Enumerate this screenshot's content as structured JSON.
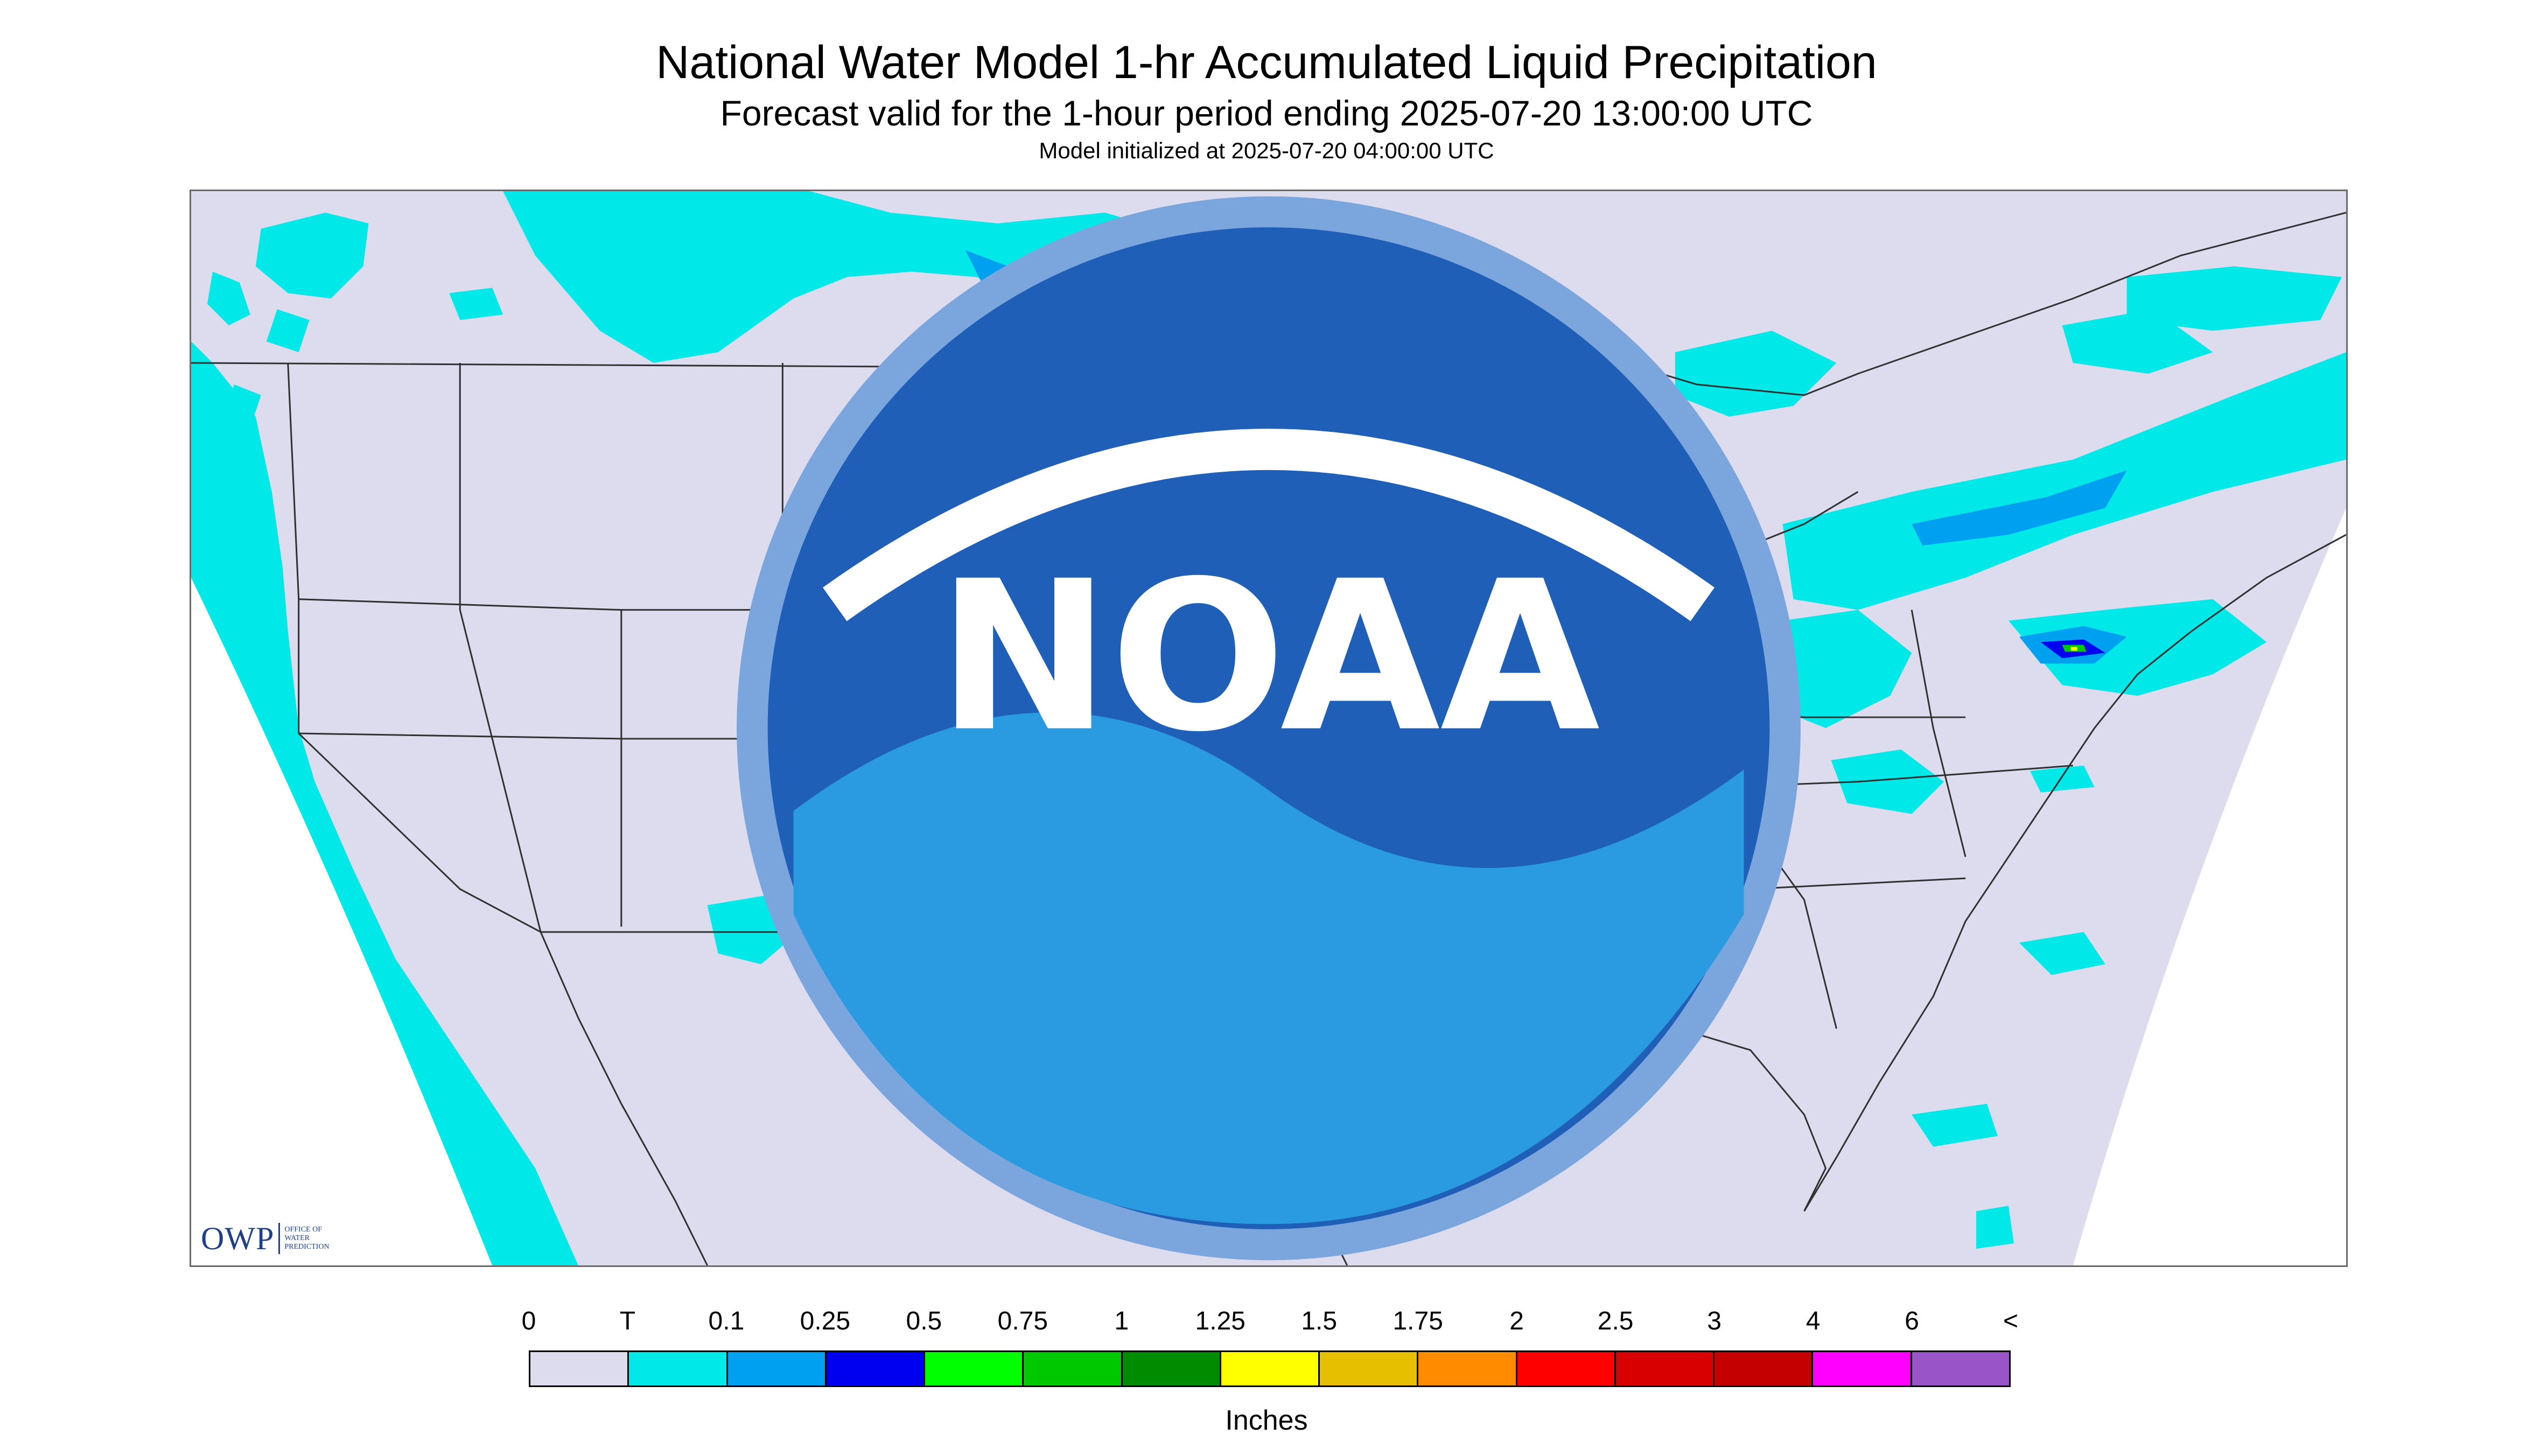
{
  "title": "National Water Model 1-hr Accumulated Liquid Precipitation",
  "subtitle": "Forecast valid for the 1-hour period ending 2025-07-20 13:00:00 UTC",
  "initialized": "Model initialized at 2025-07-20 04:00:00 UTC",
  "logos": {
    "owp_abbr": "OWP",
    "owp_full": "Office of Water Prediction",
    "noaa_label": "NOAA"
  },
  "legend": {
    "tick_labels": [
      "0",
      "T",
      "0.1",
      "0.25",
      "0.5",
      "0.75",
      "1",
      "1.25",
      "1.5",
      "1.75",
      "2",
      "2.5",
      "3",
      "4",
      "6",
      "<"
    ],
    "colors": [
      "#dcdcee",
      "#00e8e8",
      "#00a0f0",
      "#0000f0",
      "#00ff00",
      "#00c800",
      "#008c00",
      "#ffff00",
      "#e6c000",
      "#ff8c00",
      "#ff0000",
      "#d80000",
      "#c40000",
      "#ff00ff",
      "#9955c8"
    ],
    "units": "Inches"
  },
  "colors": {
    "map_background": "#dcdcee",
    "outside_domain": "#ffffff",
    "trace": "#00e8e8",
    "light": "#00a0f0",
    "moderate": "#0000f0",
    "heavy": "#00c800",
    "very_heavy": "#ffff00",
    "border_lines": "#303030",
    "logo_blue": "#1f3f86"
  }
}
